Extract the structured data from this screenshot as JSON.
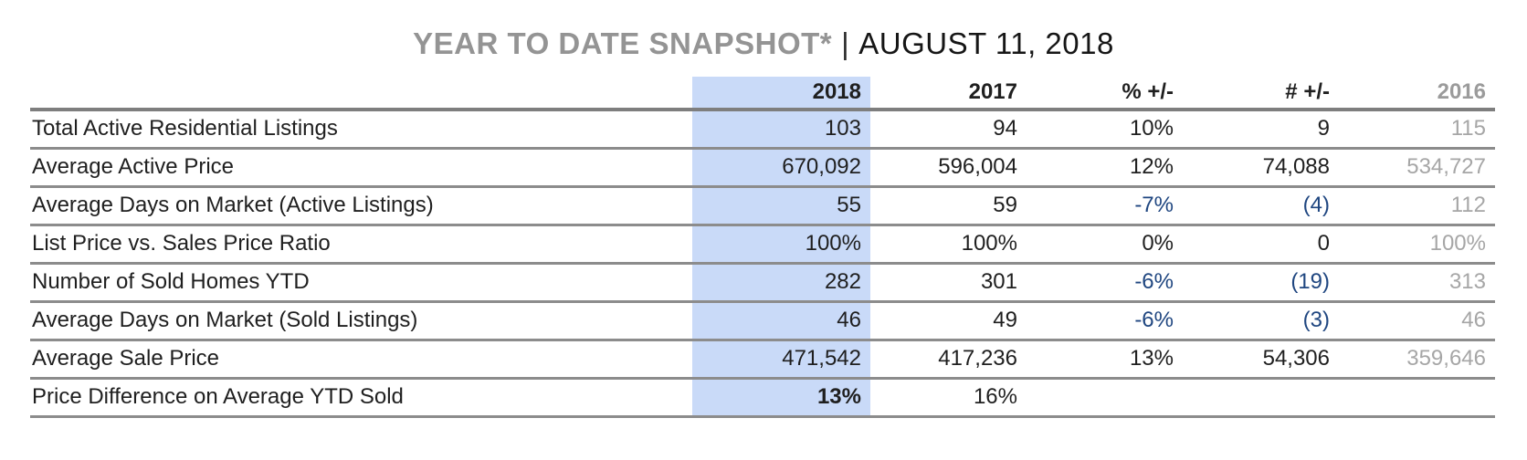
{
  "title": {
    "main": "YEAR TO DATE SNAPSHOT*",
    "separator": "|",
    "date": "AUGUST 11, 2018"
  },
  "colors": {
    "highlight_column": "#c9daf8",
    "negative_value": "#1f4680",
    "muted_column": "#a6a6a6",
    "title_gray": "#949494",
    "row_border": "#8c8c8c"
  },
  "table": {
    "columns": [
      "",
      "2018",
      "2017",
      "% +/-",
      "# +/-",
      "2016"
    ],
    "rows": [
      {
        "label": "Total Active Residential Listings",
        "y2018": "103",
        "y2017": "94",
        "pct": "10%",
        "num": "9",
        "y2016": "115"
      },
      {
        "label": "Average Active Price",
        "y2018": "670,092",
        "y2017": "596,004",
        "pct": "12%",
        "num": "74,088",
        "y2016": "534,727"
      },
      {
        "label": "Average Days on Market (Active Listings)",
        "y2018": "55",
        "y2017": "59",
        "pct": "-7%",
        "num": "(4)",
        "y2016": "112"
      },
      {
        "label": "List Price vs. Sales Price Ratio",
        "y2018": "100%",
        "y2017": "100%",
        "pct": "0%",
        "num": "0",
        "y2016": "100%"
      },
      {
        "label": "Number of Sold Homes YTD",
        "y2018": "282",
        "y2017": "301",
        "pct": "-6%",
        "num": "(19)",
        "y2016": "313"
      },
      {
        "label": "Average Days on Market (Sold Listings)",
        "y2018": "46",
        "y2017": "49",
        "pct": "-6%",
        "num": "(3)",
        "y2016": "46"
      },
      {
        "label": "Average Sale Price",
        "y2018": "471,542",
        "y2017": "417,236",
        "pct": "13%",
        "num": "54,306",
        "y2016": "359,646"
      },
      {
        "label": "Price Difference on Average YTD Sold",
        "y2018": "13%",
        "y2017": "16%",
        "pct": "",
        "num": "",
        "y2016": ""
      }
    ]
  }
}
